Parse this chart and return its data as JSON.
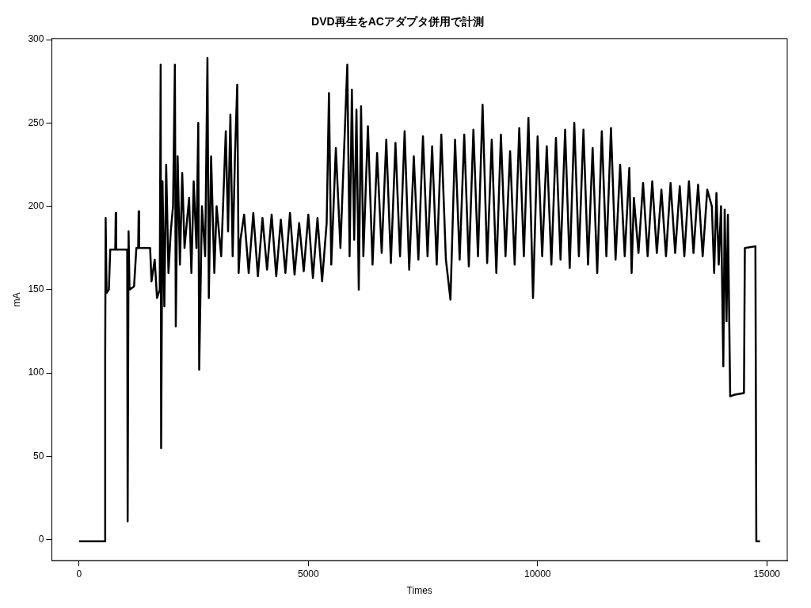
{
  "chart_data": {
    "type": "line",
    "title": "DVD再生をACアダプタ併用で計測",
    "xlabel": "Times",
    "ylabel": "mA",
    "xlim": [
      -594,
      15444
    ],
    "ylim": [
      -12.6,
      300.6
    ],
    "xticks": [
      0,
      5000,
      10000,
      15000
    ],
    "yticks": [
      0,
      50,
      100,
      150,
      200,
      250,
      300
    ],
    "grid": false,
    "legend": false,
    "marker": "none",
    "line_style": "solid",
    "series": [
      {
        "color": "#000000",
        "x": [
          0,
          560,
          570,
          580,
          600,
          650,
          680,
          790,
          800,
          810,
          1050,
          1060,
          1080,
          1100,
          1200,
          1250,
          1290,
          1300,
          1310,
          1550,
          1580,
          1650,
          1700,
          1760,
          1780,
          1790,
          1820,
          1860,
          1900,
          1950,
          2000,
          2050,
          2090,
          2110,
          2150,
          2200,
          2250,
          2300,
          2400,
          2450,
          2500,
          2560,
          2600,
          2620,
          2680,
          2750,
          2800,
          2830,
          2880,
          2950,
          3000,
          3100,
          3200,
          3250,
          3300,
          3350,
          3400,
          3450,
          3480,
          3520,
          3600,
          3700,
          3800,
          3900,
          4000,
          4100,
          4200,
          4300,
          4400,
          4500,
          4600,
          4700,
          4800,
          4900,
          5000,
          5100,
          5200,
          5300,
          5400,
          5450,
          5500,
          5600,
          5700,
          5850,
          5900,
          5950,
          6000,
          6050,
          6100,
          6150,
          6200,
          6300,
          6400,
          6500,
          6600,
          6700,
          6800,
          6900,
          7000,
          7100,
          7200,
          7300,
          7400,
          7500,
          7600,
          7700,
          7800,
          7900,
          8000,
          8100,
          8200,
          8300,
          8400,
          8500,
          8600,
          8700,
          8800,
          8900,
          9000,
          9100,
          9200,
          9300,
          9400,
          9500,
          9600,
          9700,
          9800,
          9900,
          10000,
          10100,
          10200,
          10300,
          10400,
          10500,
          10600,
          10700,
          10800,
          10900,
          11000,
          11100,
          11200,
          11300,
          11400,
          11500,
          11600,
          11700,
          11800,
          11900,
          12000,
          12050,
          12100,
          12200,
          12300,
          12400,
          12500,
          12600,
          12700,
          12800,
          12900,
          13000,
          13100,
          13200,
          13300,
          13400,
          13500,
          13600,
          13700,
          13800,
          13850,
          13900,
          13950,
          14000,
          14050,
          14080,
          14120,
          14150,
          14200,
          14300,
          14500,
          14520,
          14750,
          14770,
          14850
        ],
        "values": [
          -1,
          -1,
          110,
          193,
          148,
          150,
          174,
          174,
          196,
          174,
          174,
          11,
          185,
          150,
          152,
          175,
          175,
          197,
          175,
          175,
          155,
          168,
          145,
          150,
          285,
          55,
          215,
          140,
          225,
          160,
          185,
          200,
          285,
          128,
          230,
          165,
          220,
          175,
          205,
          160,
          215,
          175,
          250,
          102,
          200,
          170,
          289,
          145,
          230,
          160,
          200,
          170,
          245,
          185,
          255,
          170,
          230,
          273,
          160,
          180,
          195,
          160,
          196,
          158,
          193,
          162,
          195,
          158,
          192,
          160,
          196,
          159,
          190,
          161,
          195,
          157,
          193,
          155,
          190,
          268,
          165,
          235,
          175,
          285,
          170,
          270,
          180,
          258,
          150,
          260,
          170,
          248,
          165,
          232,
          172,
          240,
          166,
          238,
          170,
          245,
          162,
          230,
          168,
          242,
          170,
          236,
          165,
          243,
          168,
          144,
          240,
          168,
          243,
          164,
          246,
          170,
          261,
          166,
          240,
          160,
          243,
          170,
          233,
          165,
          247,
          170,
          253,
          145,
          242,
          170,
          236,
          165,
          241,
          168,
          246,
          163,
          250,
          170,
          246,
          165,
          235,
          160,
          245,
          170,
          247,
          168,
          225,
          170,
          223,
          160,
          205,
          172,
          214,
          170,
          215,
          172,
          210,
          170,
          214,
          172,
          212,
          170,
          215,
          172,
          213,
          170,
          210,
          200,
          160,
          208,
          165,
          200,
          104,
          198,
          131,
          195,
          86,
          87,
          88,
          175,
          176,
          -1,
          -1
        ]
      }
    ]
  }
}
